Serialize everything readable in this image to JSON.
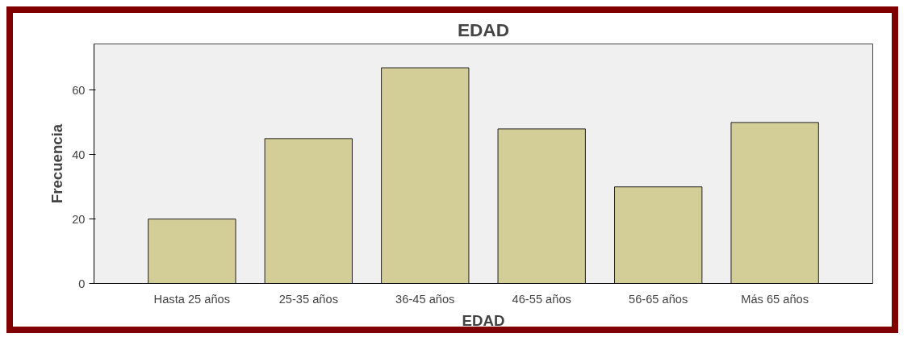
{
  "chart_data": {
    "type": "bar",
    "title": "EDAD",
    "xlabel": "EDAD",
    "ylabel": "Frecuencia",
    "categories": [
      "Hasta 25 años",
      "25-35 años",
      "36-45 años",
      "46-55 años",
      "56-65 años",
      "Más 65 años"
    ],
    "values": [
      20,
      45,
      67,
      48,
      30,
      50
    ],
    "color": "#d3ce97",
    "ylim": [
      0,
      74.4
    ],
    "yticks": [
      0,
      20,
      40,
      60
    ],
    "grid": false
  }
}
